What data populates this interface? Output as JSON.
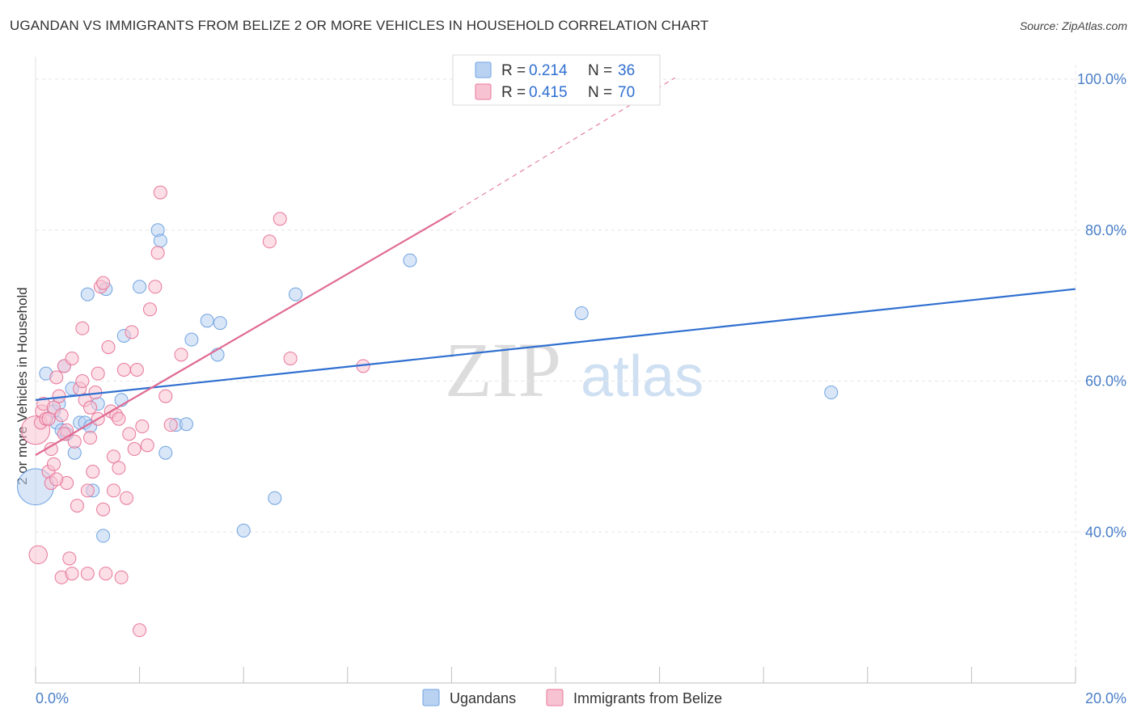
{
  "title": "UGANDAN VS IMMIGRANTS FROM BELIZE 2 OR MORE VEHICLES IN HOUSEHOLD CORRELATION CHART",
  "source": "Source: ZipAtlas.com",
  "watermark": {
    "zip": "ZIP",
    "atlas": "atlas"
  },
  "chart_data": {
    "type": "scatter",
    "title": "UGANDAN VS IMMIGRANTS FROM BELIZE 2 OR MORE VEHICLES IN HOUSEHOLD CORRELATION CHART",
    "xlabel": "",
    "ylabel": "2 or more Vehicles in Household",
    "xlim": [
      0,
      20
    ],
    "ylim": [
      20,
      103
    ],
    "x_tick_labels": [
      {
        "value": 0,
        "label": "0.0%"
      },
      {
        "value": 20,
        "label": "20.0%"
      }
    ],
    "x_minor_ticks": [
      2,
      4,
      6,
      8,
      10,
      12,
      14,
      16,
      18
    ],
    "y_ticks": [
      {
        "value": 100,
        "label": "100.0%"
      },
      {
        "value": 80,
        "label": "80.0%"
      },
      {
        "value": 60,
        "label": "60.0%"
      },
      {
        "value": 40,
        "label": "40.0%"
      }
    ],
    "grid": true,
    "legend": [
      {
        "name": "Ugandans",
        "r_label": "R = ",
        "r": "0.214",
        "n_label": "N = ",
        "n": "36",
        "color": "#6fa3e0",
        "fill": "#b9d2f2"
      },
      {
        "name": "Immigrants from Belize",
        "r_label": "R = ",
        "r": "0.415",
        "n_label": "N = ",
        "n": "70",
        "color": "#e8779a",
        "fill": "#f7c3d2"
      }
    ],
    "series": [
      {
        "name": "Ugandans",
        "color": "#6fa3e0",
        "trend": {
          "x0": 0,
          "y0": 57.5,
          "x1": 20,
          "y1": 72.2,
          "color": "#2f6fd0"
        },
        "points": [
          [
            0.0,
            46.0,
            28
          ],
          [
            0.2,
            61.0,
            10
          ],
          [
            0.35,
            56.0,
            10
          ],
          [
            0.4,
            54.5,
            10
          ],
          [
            0.45,
            57.0,
            10
          ],
          [
            0.5,
            53.5,
            10
          ],
          [
            0.55,
            62.0,
            10
          ],
          [
            0.6,
            53.0,
            10
          ],
          [
            0.7,
            59.0,
            10
          ],
          [
            0.75,
            50.5,
            10
          ],
          [
            0.85,
            54.5,
            10
          ],
          [
            0.95,
            54.5,
            10
          ],
          [
            1.05,
            54.0,
            10
          ],
          [
            1.0,
            71.5,
            10
          ],
          [
            1.1,
            45.5,
            10
          ],
          [
            1.2,
            57.0,
            10
          ],
          [
            1.3,
            39.5,
            10
          ],
          [
            1.35,
            72.2,
            10
          ],
          [
            1.65,
            57.5,
            10
          ],
          [
            1.7,
            66.0,
            10
          ],
          [
            2.0,
            72.5,
            10
          ],
          [
            2.35,
            80.0,
            10
          ],
          [
            2.4,
            78.6,
            10
          ],
          [
            2.5,
            50.5,
            10
          ],
          [
            2.7,
            54.2,
            10
          ],
          [
            2.9,
            54.3,
            10
          ],
          [
            3.0,
            65.5,
            10
          ],
          [
            3.3,
            68.0,
            10
          ],
          [
            3.5,
            63.5,
            10
          ],
          [
            3.55,
            67.7,
            10
          ],
          [
            4.0,
            40.2,
            10
          ],
          [
            4.6,
            44.5,
            10
          ],
          [
            5.0,
            71.5,
            10
          ],
          [
            7.2,
            76.0,
            10
          ],
          [
            10.5,
            69.0,
            10
          ],
          [
            15.3,
            58.5,
            10
          ]
        ]
      },
      {
        "name": "Immigrants from Belize",
        "color": "#e8779a",
        "trend": {
          "x0": 0,
          "y0": 50.2,
          "x1": 8.0,
          "y1": 82.2,
          "dash_x1": 12.3,
          "dash_y1": 100.2,
          "color": "#e06a92"
        },
        "points": [
          [
            0.0,
            53.5,
            22
          ],
          [
            0.05,
            37.0,
            14
          ],
          [
            0.1,
            54.5,
            10
          ],
          [
            0.12,
            56.0,
            10
          ],
          [
            0.15,
            57.0,
            10
          ],
          [
            0.2,
            55.0,
            10
          ],
          [
            0.25,
            48.0,
            10
          ],
          [
            0.3,
            46.5,
            10
          ],
          [
            0.3,
            51.0,
            10
          ],
          [
            0.35,
            49.0,
            10
          ],
          [
            0.35,
            56.5,
            10
          ],
          [
            0.4,
            60.5,
            10
          ],
          [
            0.45,
            58.0,
            10
          ],
          [
            0.5,
            55.5,
            10
          ],
          [
            0.5,
            34.0,
            10
          ],
          [
            0.55,
            62.0,
            10
          ],
          [
            0.6,
            53.5,
            10
          ],
          [
            0.6,
            46.5,
            10
          ],
          [
            0.65,
            36.5,
            10
          ],
          [
            0.7,
            63.0,
            10
          ],
          [
            0.7,
            34.5,
            10
          ],
          [
            0.75,
            52.0,
            10
          ],
          [
            0.8,
            43.5,
            10
          ],
          [
            0.85,
            59.0,
            10
          ],
          [
            0.9,
            67.0,
            10
          ],
          [
            0.9,
            60.0,
            10
          ],
          [
            0.95,
            57.5,
            10
          ],
          [
            1.0,
            45.5,
            10
          ],
          [
            1.0,
            34.5,
            10
          ],
          [
            1.05,
            52.5,
            10
          ],
          [
            1.1,
            48.0,
            10
          ],
          [
            1.15,
            58.5,
            10
          ],
          [
            1.2,
            61.0,
            10
          ],
          [
            1.2,
            55.0,
            10
          ],
          [
            1.25,
            72.5,
            10
          ],
          [
            1.3,
            73.0,
            10
          ],
          [
            1.35,
            34.5,
            10
          ],
          [
            1.4,
            64.5,
            10
          ],
          [
            1.45,
            56.0,
            10
          ],
          [
            1.5,
            50.0,
            10
          ],
          [
            1.5,
            45.5,
            10
          ],
          [
            1.55,
            55.5,
            10
          ],
          [
            1.6,
            55.0,
            10
          ],
          [
            1.6,
            48.5,
            10
          ],
          [
            1.65,
            34.0,
            10
          ],
          [
            1.7,
            61.5,
            10
          ],
          [
            1.75,
            44.5,
            10
          ],
          [
            1.8,
            53.0,
            10
          ],
          [
            1.85,
            66.5,
            10
          ],
          [
            1.9,
            51.0,
            10
          ],
          [
            1.95,
            61.5,
            10
          ],
          [
            2.0,
            27.0,
            10
          ],
          [
            2.05,
            54.0,
            10
          ],
          [
            2.15,
            51.5,
            10
          ],
          [
            2.2,
            69.5,
            10
          ],
          [
            2.3,
            72.5,
            10
          ],
          [
            2.35,
            77.0,
            10
          ],
          [
            2.4,
            85.0,
            10
          ],
          [
            2.5,
            58.0,
            10
          ],
          [
            2.6,
            54.2,
            10
          ],
          [
            2.8,
            63.5,
            10
          ],
          [
            4.5,
            78.5,
            10
          ],
          [
            4.7,
            81.5,
            10
          ],
          [
            4.9,
            63.0,
            10
          ],
          [
            6.3,
            62.0,
            10
          ],
          [
            0.25,
            55.0,
            10
          ],
          [
            0.55,
            53.0,
            10
          ],
          [
            1.05,
            56.5,
            10
          ],
          [
            1.3,
            43.0,
            10
          ],
          [
            0.4,
            47.0,
            10
          ]
        ]
      }
    ]
  }
}
